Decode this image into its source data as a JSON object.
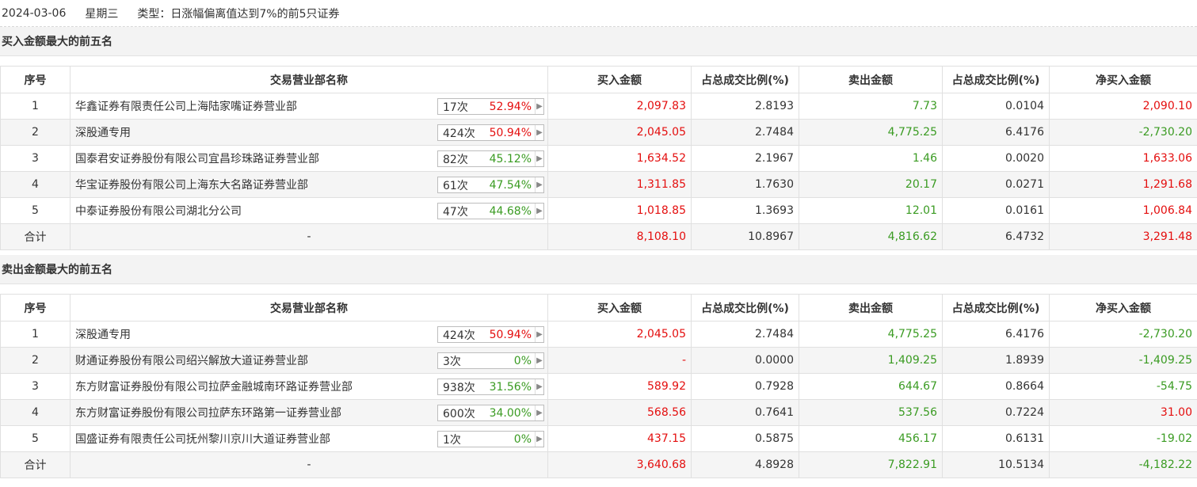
{
  "info": {
    "date": "2024-03-06",
    "weekday": "星期三",
    "type_label": "类型：日涨幅偏离值达到7%的前5只证券"
  },
  "headers": [
    "序号",
    "交易营业部名称",
    "买入金额",
    "占总成交比例(%)",
    "卖出金额",
    "占总成交比例(%)",
    "净买入金额"
  ],
  "colors": {
    "up": "#e40e0e",
    "down": "#3a9b22"
  },
  "buy_section": {
    "title": "买入金额最大的前五名",
    "rows": [
      {
        "idx": "1",
        "name": "华鑫证券有限责任公司上海陆家嘴证券营业部",
        "times": "17次",
        "rate": "52.94%",
        "rate_color": "red",
        "buy": "2,097.83",
        "buy_pct": "2.8193",
        "sell": "7.73",
        "sell_pct": "0.0104",
        "net": "2,090.10",
        "net_color": "red"
      },
      {
        "idx": "2",
        "name": "深股通专用",
        "times": "424次",
        "rate": "50.94%",
        "rate_color": "red",
        "buy": "2,045.05",
        "buy_pct": "2.7484",
        "sell": "4,775.25",
        "sell_pct": "6.4176",
        "net": "-2,730.20",
        "net_color": "green"
      },
      {
        "idx": "3",
        "name": "国泰君安证券股份有限公司宜昌珍珠路证券营业部",
        "times": "82次",
        "rate": "45.12%",
        "rate_color": "green",
        "buy": "1,634.52",
        "buy_pct": "2.1967",
        "sell": "1.46",
        "sell_pct": "0.0020",
        "net": "1,633.06",
        "net_color": "red"
      },
      {
        "idx": "4",
        "name": "华宝证券股份有限公司上海东大名路证券营业部",
        "times": "61次",
        "rate": "47.54%",
        "rate_color": "green",
        "buy": "1,311.85",
        "buy_pct": "1.7630",
        "sell": "20.17",
        "sell_pct": "0.0271",
        "net": "1,291.68",
        "net_color": "red"
      },
      {
        "idx": "5",
        "name": "中泰证券股份有限公司湖北分公司",
        "times": "47次",
        "rate": "44.68%",
        "rate_color": "green",
        "buy": "1,018.85",
        "buy_pct": "1.3693",
        "sell": "12.01",
        "sell_pct": "0.0161",
        "net": "1,006.84",
        "net_color": "red"
      }
    ],
    "total": {
      "label": "合计",
      "name": "-",
      "buy": "8,108.10",
      "buy_pct": "10.8967",
      "sell": "4,816.62",
      "sell_pct": "6.4732",
      "net": "3,291.48",
      "net_color": "red"
    }
  },
  "sell_section": {
    "title": "卖出金额最大的前五名",
    "rows": [
      {
        "idx": "1",
        "name": "深股通专用",
        "times": "424次",
        "rate": "50.94%",
        "rate_color": "red",
        "buy": "2,045.05",
        "buy_pct": "2.7484",
        "sell": "4,775.25",
        "sell_pct": "6.4176",
        "net": "-2,730.20",
        "net_color": "green"
      },
      {
        "idx": "2",
        "name": "财通证券股份有限公司绍兴解放大道证券营业部",
        "times": "3次",
        "rate": "0%",
        "rate_color": "green",
        "buy": "-",
        "buy_pct": "0.0000",
        "sell": "1,409.25",
        "sell_pct": "1.8939",
        "net": "-1,409.25",
        "net_color": "green"
      },
      {
        "idx": "3",
        "name": "东方财富证券股份有限公司拉萨金融城南环路证券营业部",
        "times": "938次",
        "rate": "31.56%",
        "rate_color": "green",
        "buy": "589.92",
        "buy_pct": "0.7928",
        "sell": "644.67",
        "sell_pct": "0.8664",
        "net": "-54.75",
        "net_color": "green"
      },
      {
        "idx": "4",
        "name": "东方财富证券股份有限公司拉萨东环路第一证券营业部",
        "times": "600次",
        "rate": "34.00%",
        "rate_color": "green",
        "buy": "568.56",
        "buy_pct": "0.7641",
        "sell": "537.56",
        "sell_pct": "0.7224",
        "net": "31.00",
        "net_color": "red"
      },
      {
        "idx": "5",
        "name": "国盛证券有限责任公司抚州黎川京川大道证券营业部",
        "times": "1次",
        "rate": "0%",
        "rate_color": "green",
        "buy": "437.15",
        "buy_pct": "0.5875",
        "sell": "456.17",
        "sell_pct": "0.6131",
        "net": "-19.02",
        "net_color": "green"
      }
    ],
    "total": {
      "label": "合计",
      "name": "-",
      "buy": "3,640.68",
      "buy_pct": "4.8928",
      "sell": "7,822.91",
      "sell_pct": "10.5134",
      "net": "-4,182.22",
      "net_color": "green"
    }
  }
}
